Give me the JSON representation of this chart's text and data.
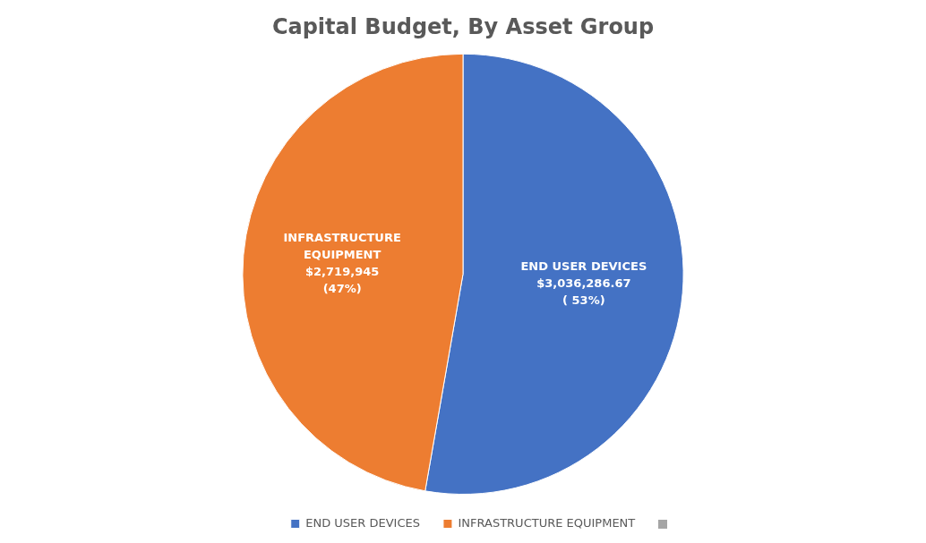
{
  "chart_data": {
    "type": "pie",
    "title": "Capital Budget, By Asset Group",
    "categories": [
      "END USER DEVICES",
      "INFRASTRUCTURE EQUIPMENT"
    ],
    "values": [
      3036286.67,
      2719945
    ],
    "colors": [
      "#4472c4",
      "#ed7d31"
    ],
    "value_labels": [
      "$3,036,286.67\n( 53%)",
      "$2,719,945\n(47%)"
    ],
    "legend": "bottom"
  }
}
